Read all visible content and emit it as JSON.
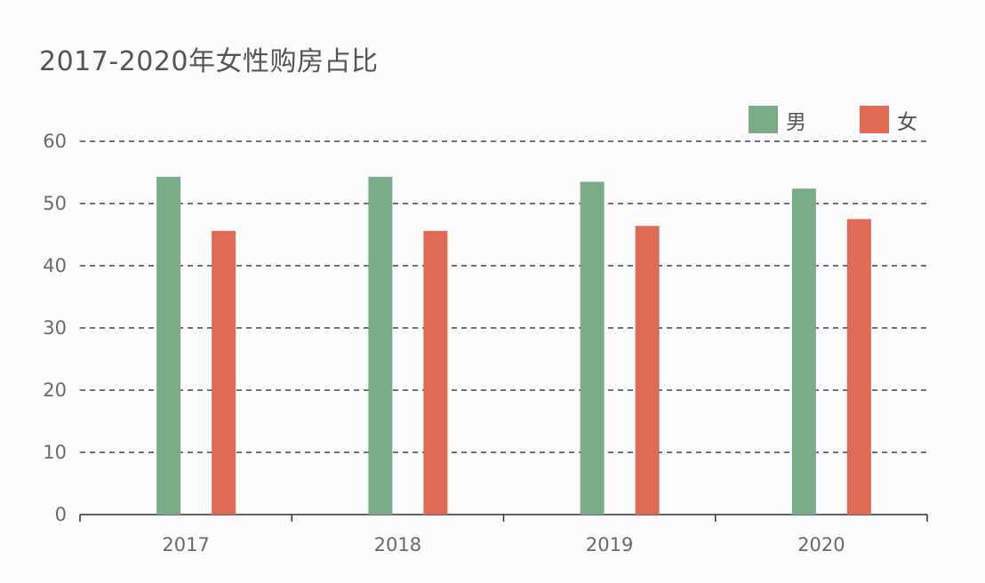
{
  "colors": {
    "male": "#7aad87",
    "female": "#e06b54",
    "grid": "#222222",
    "axis": "#333333",
    "text": "#6a6a6a",
    "background": "#fcfbfd"
  },
  "chart_data": {
    "type": "bar",
    "title": "2017-2020年女性购房占比",
    "xlabel": "",
    "ylabel": "",
    "categories": [
      "2017",
      "2018",
      "2019",
      "2020"
    ],
    "series": [
      {
        "name": "男",
        "values": [
          54.3,
          54.3,
          53.5,
          52.4
        ],
        "color": "#7aad87"
      },
      {
        "name": "女",
        "values": [
          45.6,
          45.6,
          46.4,
          47.5
        ],
        "color": "#e06b54"
      }
    ],
    "ylim": [
      0,
      60
    ],
    "yticks": [
      0,
      10,
      20,
      30,
      40,
      50,
      60
    ],
    "grid": true,
    "grid_style": "dashed",
    "legend_position": "top-right"
  }
}
